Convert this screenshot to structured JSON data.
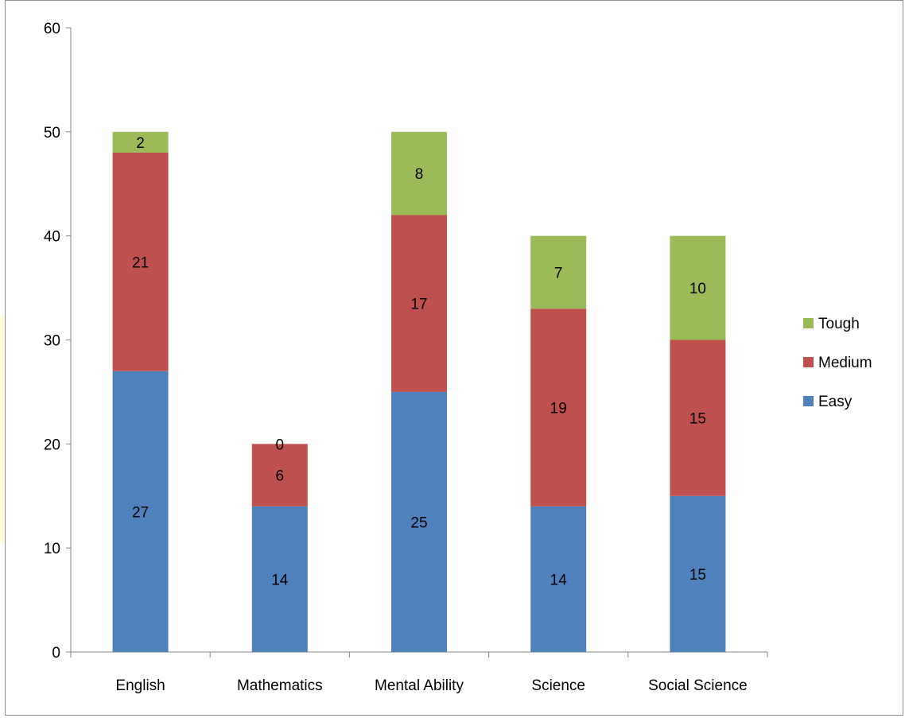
{
  "chart_data": {
    "type": "bar",
    "stacked": true,
    "categories": [
      "English",
      "Mathematics",
      "Mental Ability",
      "Science",
      "Social Science"
    ],
    "series": [
      {
        "name": "Easy",
        "values": [
          27,
          14,
          25,
          14,
          15
        ],
        "color": "#4f81bd"
      },
      {
        "name": "Medium",
        "values": [
          21,
          6,
          17,
          19,
          15
        ],
        "color": "#c0504d"
      },
      {
        "name": "Tough",
        "values": [
          2,
          0,
          8,
          7,
          10
        ],
        "color": "#9bbb59"
      }
    ],
    "ylim": [
      0,
      60
    ],
    "yticks": [
      0,
      10,
      20,
      30,
      40,
      50,
      60
    ],
    "grid": false,
    "legend_position": "right",
    "legend_order": [
      "Tough",
      "Medium",
      "Easy"
    ],
    "data_labels": true
  }
}
